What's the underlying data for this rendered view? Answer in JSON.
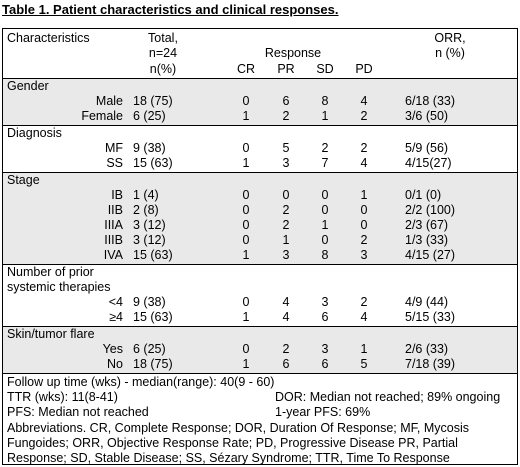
{
  "title": "Table 1. Patient characteristics and clinical responses.",
  "header": {
    "characteristics": "Characteristics",
    "total_line1": "Total,",
    "total_line2": "n=24",
    "total_line3": "n(%)",
    "response": "Response",
    "orr_line1": "ORR,",
    "orr_line2": "n (%)",
    "cr": "CR",
    "pr": "PR",
    "sd": "SD",
    "pd": "PD"
  },
  "sections": [
    {
      "label": "Gender",
      "label_line2": "",
      "rows": [
        {
          "label": "Male",
          "total": "18 (75)",
          "cr": "0",
          "pr": "6",
          "sd": "8",
          "pd": "4",
          "orr": "6/18 (33)"
        },
        {
          "label": "Female",
          "total": "6 (25)",
          "cr": "1",
          "pr": "2",
          "sd": "1",
          "pd": "2",
          "orr": "3/6 (50)"
        }
      ]
    },
    {
      "label": "Diagnosis",
      "label_line2": "",
      "rows": [
        {
          "label": "MF",
          "total": "9 (38)",
          "cr": "0",
          "pr": "5",
          "sd": "2",
          "pd": "2",
          "orr": "5/9 (56)"
        },
        {
          "label": "SS",
          "total": "15 (63)",
          "cr": "1",
          "pr": "3",
          "sd": "7",
          "pd": "4",
          "orr": "4/15(27)"
        }
      ]
    },
    {
      "label": "Stage",
      "label_line2": "",
      "rows": [
        {
          "label": "IB",
          "total": "1 (4)",
          "cr": "0",
          "pr": "0",
          "sd": "0",
          "pd": "1",
          "orr": "0/1 (0)"
        },
        {
          "label": "IIB",
          "total": "2 (8)",
          "cr": "0",
          "pr": "2",
          "sd": "0",
          "pd": "0",
          "orr": "2/2 (100)"
        },
        {
          "label": "IIIA",
          "total": "3 (12)",
          "cr": "0",
          "pr": "2",
          "sd": "1",
          "pd": "0",
          "orr": "2/3 (67)"
        },
        {
          "label": "IIIB",
          "total": "3 (12)",
          "cr": "0",
          "pr": "1",
          "sd": "0",
          "pd": "2",
          "orr": "1/3 (33)"
        },
        {
          "label": "IVA",
          "total": "15 (63)",
          "cr": "1",
          "pr": "3",
          "sd": "8",
          "pd": "3",
          "orr": "4/15 (27)"
        }
      ]
    },
    {
      "label": "Number of prior",
      "label_line2": "systemic therapies",
      "rows": [
        {
          "label": "<4",
          "total": "9 (38)",
          "cr": "0",
          "pr": "4",
          "sd": "3",
          "pd": "2",
          "orr": "4/9 (44)"
        },
        {
          "label": "≥4",
          "total": "15 (63)",
          "cr": "1",
          "pr": "4",
          "sd": "6",
          "pd": "4",
          "orr": "5/15 (33)"
        }
      ]
    },
    {
      "label": "Skin/tumor flare",
      "label_line2": "",
      "rows": [
        {
          "label": "Yes",
          "total": "6 (25)",
          "cr": "0",
          "pr": "2",
          "sd": "3",
          "pd": "1",
          "orr": "2/6 (33)"
        },
        {
          "label": "No",
          "total": "18 (75)",
          "cr": "1",
          "pr": "6",
          "sd": "6",
          "pd": "5",
          "orr": "7/18 (39)"
        }
      ]
    }
  ],
  "footer": {
    "follow_up": "Follow up time (wks) - median(range): 40(9 - 60)",
    "ttr": "TTR (wks): 11(8-41)",
    "dor": "DOR: Median not reached; 89% ongoing",
    "pfs": "PFS: Median not reached",
    "pfs_1yr": "1-year PFS: 69%",
    "abbreviations": "Abbreviations. CR, Complete Response; DOR, Duration Of Response; MF, Mycosis Fungoides; ORR, Objective Response Rate; PD, Progressive Disease PR, Partial Response; SD, Stable Disease; SS, Sézary Syndrome; TTR, Time To Response"
  }
}
